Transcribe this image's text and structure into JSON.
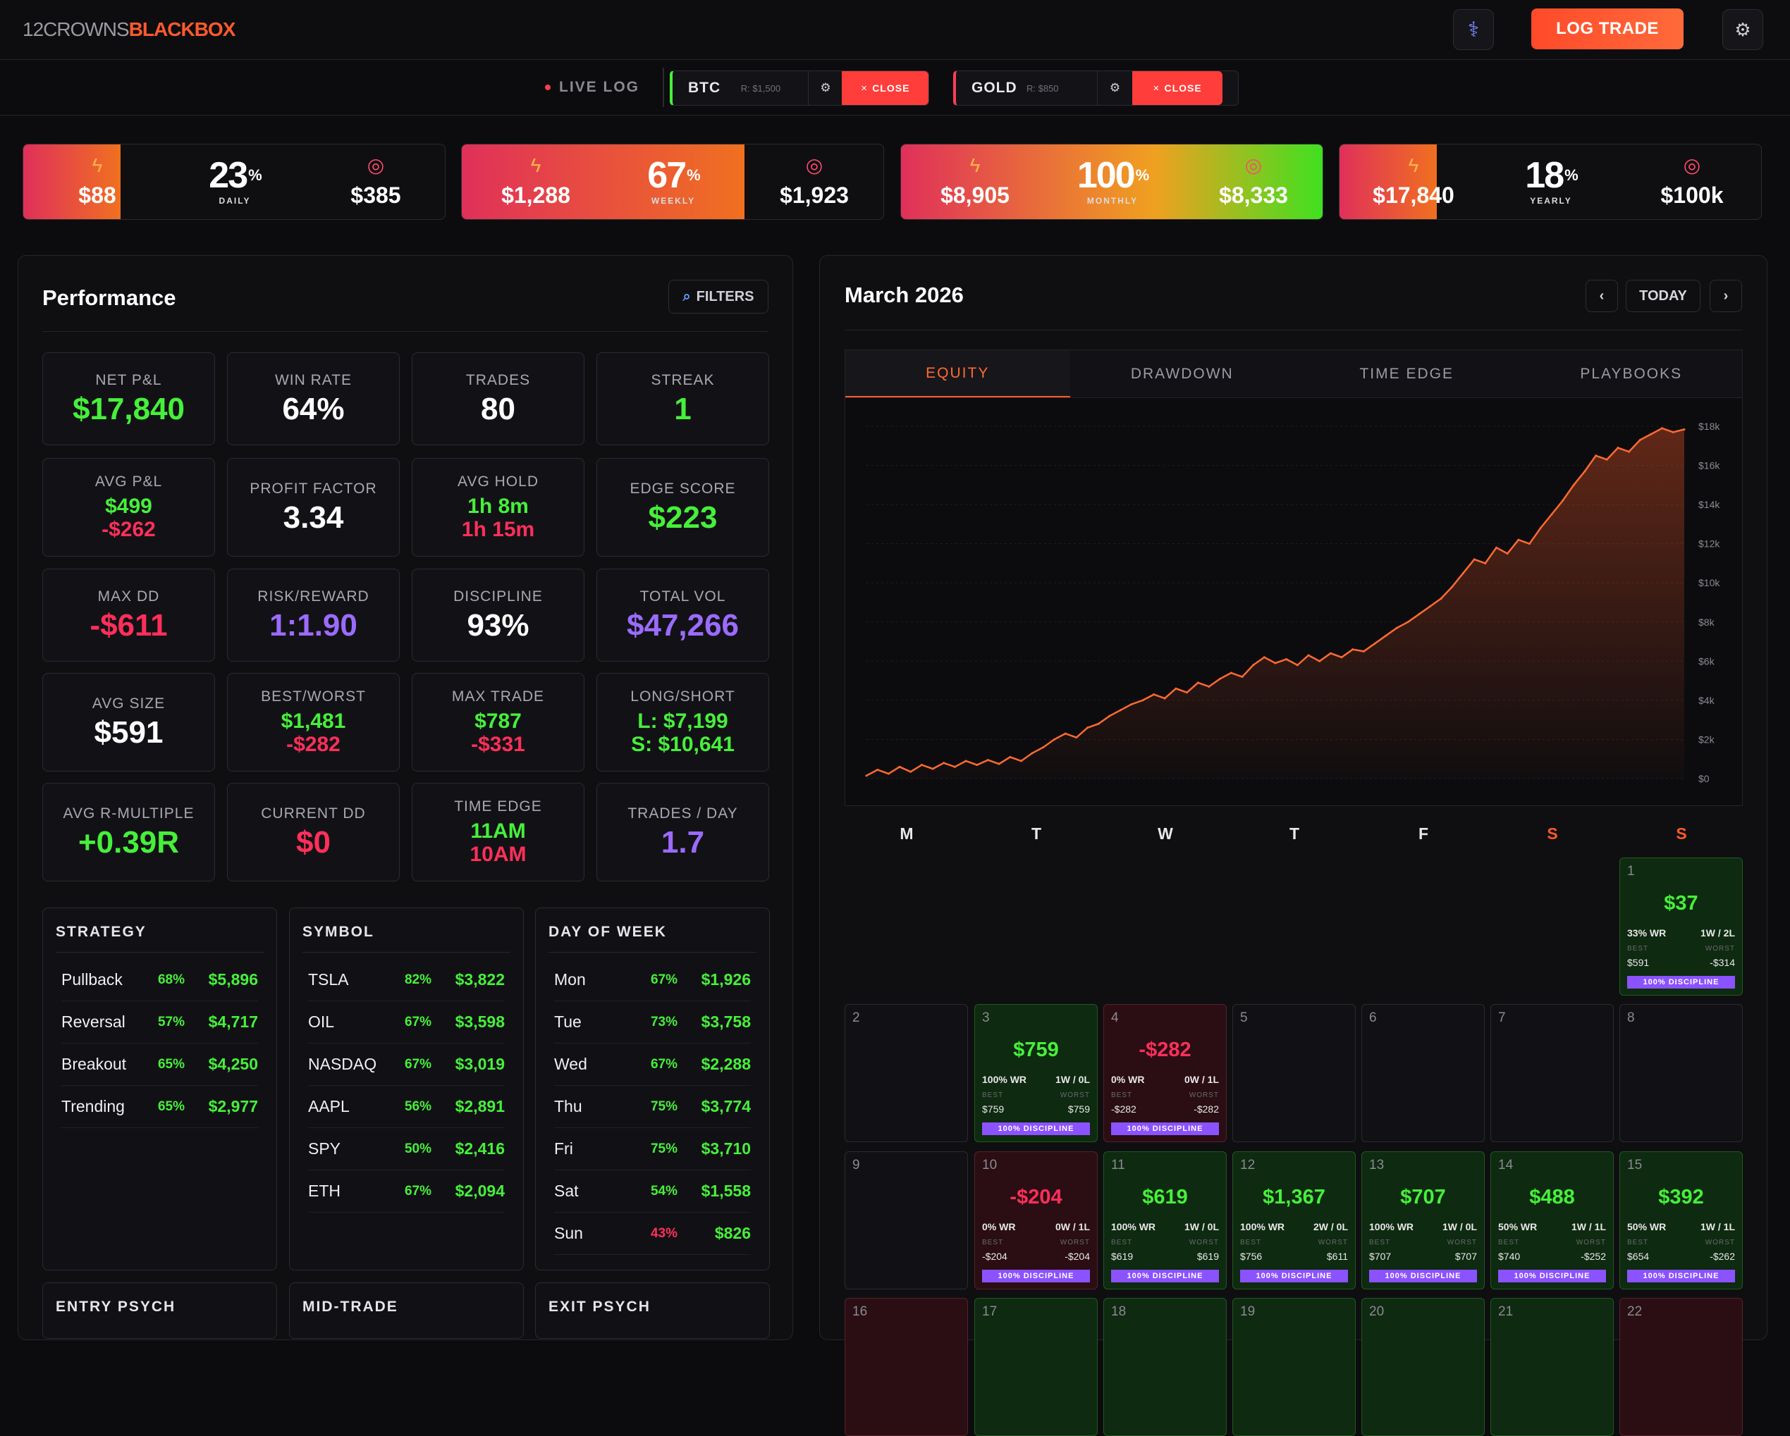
{
  "header": {
    "logo_a": "12CROWNS",
    "logo_b": "BLACKBOX",
    "log_trade": "LOG TRADE"
  },
  "live": {
    "label": "LIVE LOG",
    "positions": [
      {
        "symbol": "BTC",
        "risk": "R: $1,500",
        "close": "CLOSE",
        "accent": "#46f03a"
      },
      {
        "symbol": "GOLD",
        "risk": "R: $850",
        "close": "CLOSE",
        "accent": "#ff3d5a"
      }
    ]
  },
  "kpis": [
    {
      "left": "$88",
      "pct": "23",
      "period": "DAILY",
      "right": "$385",
      "progress": 0.23
    },
    {
      "left": "$1,288",
      "pct": "67",
      "period": "WEEKLY",
      "right": "$1,923",
      "progress": 0.67
    },
    {
      "left": "$8,905",
      "pct": "100",
      "period": "MONTHLY",
      "right": "$8,333",
      "progress": 1.0
    },
    {
      "left": "$17,840",
      "pct": "18",
      "period": "YEARLY",
      "right": "$100k",
      "progress": 0.18
    }
  ],
  "performance": {
    "title": "Performance",
    "filters": "FILTERS",
    "stats": [
      {
        "label": "NET P&L",
        "values": [
          "$17,840"
        ],
        "colors": [
          "g"
        ]
      },
      {
        "label": "WIN RATE",
        "values": [
          "64%"
        ],
        "colors": [
          "w"
        ]
      },
      {
        "label": "TRADES",
        "values": [
          "80"
        ],
        "colors": [
          "w"
        ]
      },
      {
        "label": "STREAK",
        "values": [
          "1"
        ],
        "colors": [
          "g"
        ]
      },
      {
        "label": "AVG P&L",
        "values": [
          "$499",
          "-$262"
        ],
        "colors": [
          "g",
          "r"
        ]
      },
      {
        "label": "PROFIT FACTOR",
        "values": [
          "3.34"
        ],
        "colors": [
          "w"
        ]
      },
      {
        "label": "AVG HOLD",
        "values": [
          "1h 8m",
          "1h 15m"
        ],
        "colors": [
          "g",
          "r"
        ]
      },
      {
        "label": "EDGE SCORE",
        "values": [
          "$223"
        ],
        "colors": [
          "g"
        ]
      },
      {
        "label": "MAX DD",
        "values": [
          "-$611"
        ],
        "colors": [
          "r"
        ]
      },
      {
        "label": "RISK/REWARD",
        "values": [
          "1:1.90"
        ],
        "colors": [
          "p"
        ]
      },
      {
        "label": "DISCIPLINE",
        "values": [
          "93%"
        ],
        "colors": [
          "w"
        ]
      },
      {
        "label": "TOTAL VOL",
        "values": [
          "$47,266"
        ],
        "colors": [
          "p"
        ]
      },
      {
        "label": "AVG SIZE",
        "values": [
          "$591"
        ],
        "colors": [
          "w"
        ]
      },
      {
        "label": "BEST/WORST",
        "values": [
          "$1,481",
          "-$282"
        ],
        "colors": [
          "g",
          "r"
        ]
      },
      {
        "label": "MAX TRADE",
        "values": [
          "$787",
          "-$331"
        ],
        "colors": [
          "g",
          "r"
        ]
      },
      {
        "label": "LONG/SHORT",
        "values": [
          "L: $7,199",
          "S: $10,641"
        ],
        "colors": [
          "g",
          "g"
        ]
      },
      {
        "label": "AVG R-MULTIPLE",
        "values": [
          "+0.39R"
        ],
        "colors": [
          "g"
        ]
      },
      {
        "label": "CURRENT DD",
        "values": [
          "$0"
        ],
        "colors": [
          "r"
        ]
      },
      {
        "label": "TIME EDGE",
        "values": [
          "11AM",
          "10AM"
        ],
        "colors": [
          "g",
          "r"
        ]
      },
      {
        "label": "TRADES / DAY",
        "values": [
          "1.7"
        ],
        "colors": [
          "p"
        ]
      }
    ],
    "tables": [
      {
        "title": "STRATEGY",
        "rows": [
          [
            "Pullback",
            "68%",
            "$5,896"
          ],
          [
            "Reversal",
            "57%",
            "$4,717"
          ],
          [
            "Breakout",
            "65%",
            "$4,250"
          ],
          [
            "Trending",
            "65%",
            "$2,977"
          ]
        ]
      },
      {
        "title": "SYMBOL",
        "rows": [
          [
            "TSLA",
            "82%",
            "$3,822"
          ],
          [
            "OIL",
            "67%",
            "$3,598"
          ],
          [
            "NASDAQ",
            "67%",
            "$3,019"
          ],
          [
            "AAPL",
            "56%",
            "$2,891"
          ],
          [
            "SPY",
            "50%",
            "$2,416"
          ],
          [
            "ETH",
            "67%",
            "$2,094"
          ]
        ]
      },
      {
        "title": "DAY OF WEEK",
        "rows": [
          [
            "Mon",
            "67%",
            "$1,926"
          ],
          [
            "Tue",
            "73%",
            "$3,758"
          ],
          [
            "Wed",
            "67%",
            "$2,288"
          ],
          [
            "Thu",
            "75%",
            "$3,774"
          ],
          [
            "Fri",
            "75%",
            "$3,710"
          ],
          [
            "Sat",
            "54%",
            "$1,558"
          ],
          [
            "Sun",
            "43%",
            "$826"
          ]
        ]
      }
    ],
    "bottom_tables": [
      "ENTRY PSYCH",
      "MID-TRADE",
      "EXIT PSYCH"
    ]
  },
  "calendar": {
    "month": "March 2026",
    "today": "TODAY",
    "tabs": [
      "EQUITY",
      "DRAWDOWN",
      "TIME EDGE",
      "PLAYBOOKS"
    ],
    "weekdays": [
      "M",
      "T",
      "W",
      "T",
      "F",
      "S",
      "S"
    ],
    "labels": {
      "best": "BEST",
      "worst": "WORST",
      "discipline": "100% DISCIPLINE"
    },
    "days": [
      {
        "n": "1",
        "pl": "$37",
        "wr": "33% WR",
        "wl": "1W / 2L",
        "best": "$591",
        "worst": "-$314",
        "t": "win"
      },
      {
        "n": "2"
      },
      {
        "n": "3",
        "pl": "$759",
        "wr": "100% WR",
        "wl": "1W / 0L",
        "best": "$759",
        "worst": "$759",
        "t": "win"
      },
      {
        "n": "4",
        "pl": "-$282",
        "wr": "0% WR",
        "wl": "0W / 1L",
        "best": "-$282",
        "worst": "-$282",
        "t": "loss"
      },
      {
        "n": "5"
      },
      {
        "n": "6"
      },
      {
        "n": "7"
      },
      {
        "n": "8"
      },
      {
        "n": "9"
      },
      {
        "n": "10",
        "pl": "-$204",
        "wr": "0% WR",
        "wl": "0W / 1L",
        "best": "-$204",
        "worst": "-$204",
        "t": "loss"
      },
      {
        "n": "11",
        "pl": "$619",
        "wr": "100% WR",
        "wl": "1W / 0L",
        "best": "$619",
        "worst": "$619",
        "t": "win"
      },
      {
        "n": "12",
        "pl": "$1,367",
        "wr": "100% WR",
        "wl": "2W / 0L",
        "best": "$756",
        "worst": "$611",
        "t": "win"
      },
      {
        "n": "13",
        "pl": "$707",
        "wr": "100% WR",
        "wl": "1W / 0L",
        "best": "$707",
        "worst": "$707",
        "t": "win"
      },
      {
        "n": "14",
        "pl": "$488",
        "wr": "50% WR",
        "wl": "1W / 1L",
        "best": "$740",
        "worst": "-$252",
        "t": "win"
      },
      {
        "n": "15",
        "pl": "$392",
        "wr": "50% WR",
        "wl": "1W / 1L",
        "best": "$654",
        "worst": "-$262",
        "t": "win"
      },
      {
        "n": "16",
        "t": "loss"
      },
      {
        "n": "17",
        "t": "win"
      },
      {
        "n": "18",
        "t": "win"
      },
      {
        "n": "19",
        "t": "win"
      },
      {
        "n": "20",
        "t": "win"
      },
      {
        "n": "21",
        "t": "win"
      },
      {
        "n": "22",
        "t": "loss"
      }
    ]
  },
  "chart_data": {
    "type": "area",
    "yticks": [
      "$18k",
      "$16k",
      "$14k",
      "$12k",
      "$10k",
      "$8k",
      "$6k",
      "$4k",
      "$2k",
      "$0"
    ],
    "ylim": [
      0,
      18000
    ],
    "values": [
      150,
      450,
      250,
      600,
      350,
      700,
      500,
      800,
      600,
      900,
      700,
      950,
      750,
      1100,
      900,
      1300,
      1600,
      2000,
      2300,
      2100,
      2600,
      2800,
      3200,
      3500,
      3800,
      4000,
      4300,
      4100,
      4600,
      4400,
      4900,
      4700,
      5100,
      5400,
      5200,
      5800,
      6200,
      5900,
      6100,
      5800,
      6300,
      6000,
      6400,
      6200,
      6600,
      6500,
      6900,
      7300,
      7700,
      8000,
      8400,
      8800,
      9200,
      9800,
      10500,
      11200,
      11000,
      11800,
      11500,
      12200,
      12000,
      12800,
      13500,
      14200,
      15000,
      15700,
      16500,
      16300,
      16900,
      16700,
      17300,
      17600,
      17900,
      17700,
      17840
    ]
  }
}
